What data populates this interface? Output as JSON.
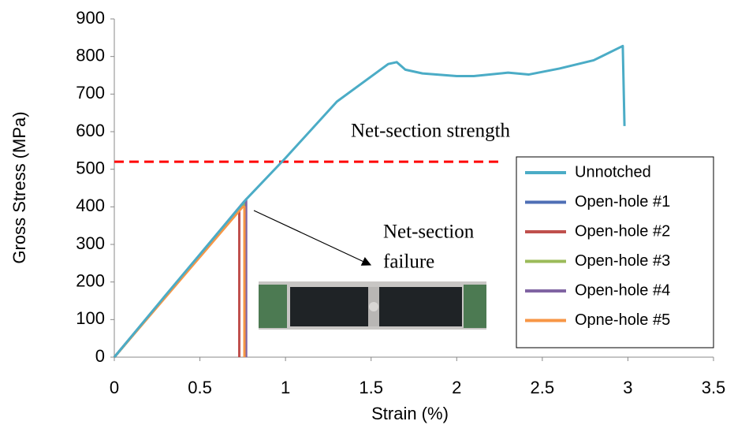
{
  "chart_data": {
    "type": "line",
    "xlabel": "Strain (%)",
    "ylabel": "Gross Stress (MPa)",
    "xlim": [
      0,
      3.5
    ],
    "xticks": [
      0,
      0.5,
      1,
      1.5,
      2,
      2.5,
      3,
      3.5
    ],
    "ylim": [
      0,
      900
    ],
    "yticks": [
      0,
      100,
      200,
      300,
      400,
      500,
      600,
      700,
      800,
      900
    ],
    "grid": false,
    "legend": "right",
    "series": [
      {
        "name": "Unnotched",
        "color": "#4bacc6",
        "x": [
          0,
          0.3,
          0.77,
          1.0,
          1.3,
          1.6,
          1.65,
          1.7,
          1.8,
          2.0,
          2.1,
          2.3,
          2.42,
          2.6,
          2.8,
          2.97,
          2.98
        ],
        "values": [
          0,
          165,
          420,
          530,
          680,
          780,
          785,
          765,
          755,
          748,
          748,
          757,
          752,
          768,
          790,
          828,
          615
        ]
      },
      {
        "name": "Open-hole #1",
        "color": "#4f6fb5",
        "x": [
          0,
          0.76,
          0.76
        ],
        "values": [
          0,
          415,
          0
        ]
      },
      {
        "name": "Open-hole #2",
        "color": "#c0504d",
        "x": [
          0,
          0.73,
          0.73
        ],
        "values": [
          0,
          395,
          0
        ]
      },
      {
        "name": "Open-hole #3",
        "color": "#9bbb59",
        "x": [
          0,
          0.76,
          0.76
        ],
        "values": [
          0,
          408,
          0
        ]
      },
      {
        "name": "Open-hole #4",
        "color": "#8064a2",
        "x": [
          0,
          0.77,
          0.77
        ],
        "values": [
          0,
          420,
          0
        ]
      },
      {
        "name": "Opne-hole #5",
        "color": "#f79646",
        "x": [
          0,
          0.75,
          0.76,
          0.76
        ],
        "values": [
          0,
          400,
          400,
          0
        ]
      }
    ],
    "reference_line": {
      "value": 520,
      "x": [
        0,
        2.27
      ],
      "color": "#ff0000"
    },
    "annotations": [
      {
        "text": "Net-section strength"
      },
      {
        "lines": [
          "Net-section",
          "failure"
        ]
      }
    ]
  }
}
